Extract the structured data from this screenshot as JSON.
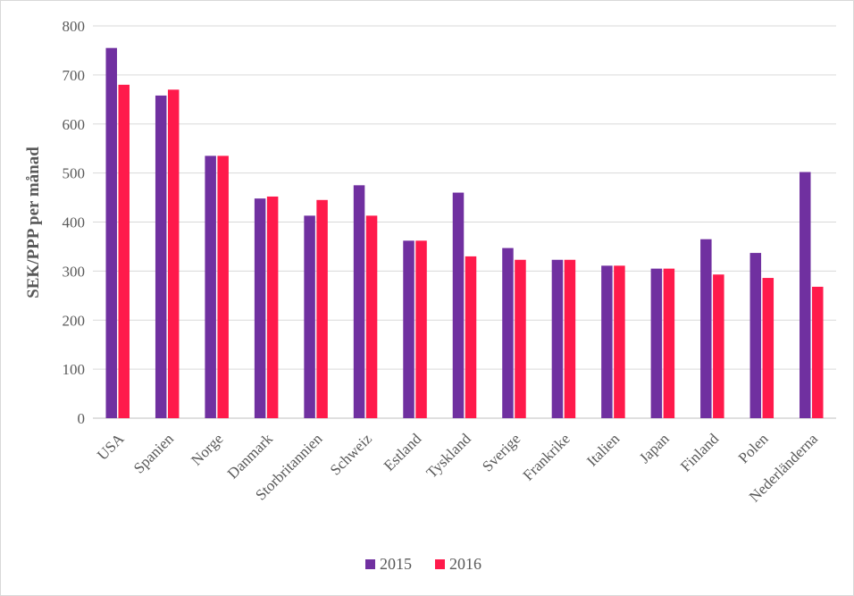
{
  "chart_data": {
    "type": "bar",
    "ylabel": "SEK/PPP  per månad",
    "ylim": [
      0,
      800
    ],
    "yticks": [
      0,
      100,
      200,
      300,
      400,
      500,
      600,
      700,
      800
    ],
    "grid": true,
    "legend_position": "bottom",
    "categories": [
      "USA",
      "Spanien",
      "Norge",
      "Danmark",
      "Storbritannien",
      "Schweiz",
      "Estland",
      "Tyskland",
      "Sverige",
      "Frankrike",
      "Italien",
      "Japan",
      "Finland",
      "Polen",
      "Nederländerna"
    ],
    "series": [
      {
        "name": "2015",
        "color": "#7030a0",
        "values": [
          755,
          658,
          535,
          448,
          413,
          475,
          362,
          460,
          347,
          323,
          311,
          305,
          365,
          337,
          502
        ]
      },
      {
        "name": "2016",
        "color": "#ff1a4b",
        "values": [
          680,
          670,
          535,
          452,
          445,
          413,
          362,
          330,
          323,
          323,
          311,
          305,
          293,
          286,
          268
        ]
      }
    ]
  }
}
